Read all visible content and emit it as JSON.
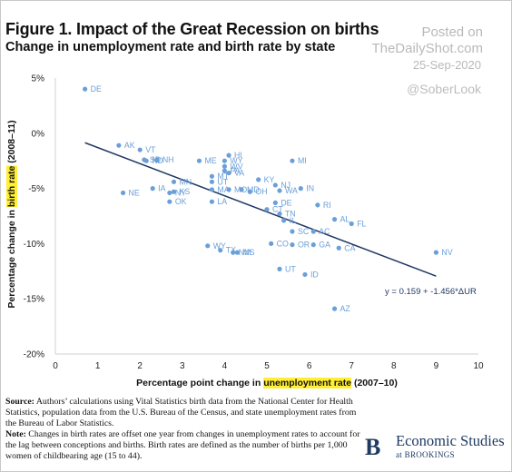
{
  "header": {
    "title": "Figure 1. Impact of the Great Recession on births",
    "subtitle": "Change in unemployment rate and birth rate by state",
    "posted_on": "Posted on",
    "site": "TheDailyShot.com",
    "date": "25-Sep-2020",
    "handle": "@SoberLook"
  },
  "chart_data": {
    "type": "scatter",
    "xlabel_prefix": "Percentage point change in ",
    "xlabel_highlight": "unemployment rate",
    "xlabel_suffix": " (2007–10)",
    "ylabel_prefix": "Percentage change in ",
    "ylabel_highlight": "birth rate",
    "ylabel_suffix": " (2008–11)",
    "xlim": [
      0,
      10
    ],
    "ylim": [
      -20,
      5
    ],
    "x_ticks": [
      0,
      1,
      2,
      3,
      4,
      5,
      6,
      7,
      8,
      9,
      10
    ],
    "y_ticks": [
      5,
      0,
      -5,
      -10,
      -15,
      -20
    ],
    "y_tick_labels": [
      "5%",
      "0%",
      "-5%",
      "-10%",
      "-15%",
      "-20%"
    ],
    "grid": false,
    "point_color": "#6a9fd8",
    "line_color": "#1f3864",
    "trendline": {
      "intercept": 0.159,
      "slope": -1.456,
      "x_range": [
        0.7,
        9.0
      ]
    },
    "equation": "y = 0.159 + -1.456*ΔUR",
    "points": [
      {
        "label": "DE",
        "x": 0.7,
        "y": 4.0
      },
      {
        "label": "AK",
        "x": 1.5,
        "y": -1.1
      },
      {
        "label": "VT",
        "x": 2.0,
        "y": -1.5
      },
      {
        "label": "SD",
        "x": 2.1,
        "y": -2.4
      },
      {
        "label": "NH",
        "x": 2.4,
        "y": -2.4
      },
      {
        "label": "ND",
        "x": 2.15,
        "y": -2.5
      },
      {
        "label": "NE",
        "x": 1.6,
        "y": -5.4
      },
      {
        "label": "IA",
        "x": 2.3,
        "y": -5.0
      },
      {
        "label": "MN",
        "x": 2.8,
        "y": -4.4
      },
      {
        "label": "KS",
        "x": 2.8,
        "y": -5.3
      },
      {
        "label": "NY",
        "x": 2.7,
        "y": -5.4
      },
      {
        "label": "OK",
        "x": 2.7,
        "y": -6.2
      },
      {
        "label": "ME",
        "x": 3.4,
        "y": -2.5
      },
      {
        "label": "HI",
        "x": 4.1,
        "y": -2.0
      },
      {
        "label": "WY",
        "x": 4.0,
        "y": -2.5
      },
      {
        "label": "WV",
        "x": 4.0,
        "y": -3.0
      },
      {
        "label": "PA",
        "x": 4.0,
        "y": -3.4
      },
      {
        "label": "VA",
        "x": 4.1,
        "y": -3.6
      },
      {
        "label": "MT",
        "x": 3.7,
        "y": -3.9
      },
      {
        "label": "UT",
        "x": 3.7,
        "y": -4.4
      },
      {
        "label": "MA",
        "x": 3.7,
        "y": -5.1
      },
      {
        "label": "MO",
        "x": 4.1,
        "y": -5.1
      },
      {
        "label": "MD",
        "x": 4.4,
        "y": -5.1
      },
      {
        "label": "OH",
        "x": 4.6,
        "y": -5.3
      },
      {
        "label": "LA",
        "x": 3.7,
        "y": -6.2
      },
      {
        "label": "KY",
        "x": 4.8,
        "y": -4.2
      },
      {
        "label": "NJ",
        "x": 5.2,
        "y": -4.7
      },
      {
        "label": "WA",
        "x": 5.3,
        "y": -5.2
      },
      {
        "label": "IN",
        "x": 5.8,
        "y": -5.0
      },
      {
        "label": "MI",
        "x": 5.6,
        "y": -2.5
      },
      {
        "label": "DE",
        "x": 5.2,
        "y": -6.3
      },
      {
        "label": "CT",
        "x": 5.0,
        "y": -6.9
      },
      {
        "label": "TN",
        "x": 5.3,
        "y": -7.3
      },
      {
        "label": "RI",
        "x": 6.2,
        "y": -6.5
      },
      {
        "label": "IL",
        "x": 5.4,
        "y": -7.9
      },
      {
        "label": "AL",
        "x": 6.6,
        "y": -7.8
      },
      {
        "label": "FL",
        "x": 7.0,
        "y": -8.2
      },
      {
        "label": "SC",
        "x": 5.6,
        "y": -8.9
      },
      {
        "label": "AC",
        "x": 6.1,
        "y": -8.9
      },
      {
        "label": "CO",
        "x": 5.1,
        "y": -10.0
      },
      {
        "label": "OR",
        "x": 5.6,
        "y": -10.1
      },
      {
        "label": "GA",
        "x": 6.1,
        "y": -10.1
      },
      {
        "label": "CA",
        "x": 6.7,
        "y": -10.4
      },
      {
        "label": "WY",
        "x": 3.6,
        "y": -10.2
      },
      {
        "label": "TX",
        "x": 3.9,
        "y": -10.6
      },
      {
        "label": "NM",
        "x": 4.2,
        "y": -10.8
      },
      {
        "label": "MS",
        "x": 4.3,
        "y": -10.8
      },
      {
        "label": "NV",
        "x": 9.0,
        "y": -10.8
      },
      {
        "label": "UT",
        "x": 5.3,
        "y": -12.3
      },
      {
        "label": "ID",
        "x": 5.9,
        "y": -12.8
      },
      {
        "label": "AZ",
        "x": 6.6,
        "y": -15.9
      }
    ]
  },
  "footer": {
    "source_label": "Source:",
    "source_text": " Authors’ calculations using Vital Statistics birth data from the National Center for Health Statistics, population data from the U.S. Bureau of the Census, and state unemployment rates from the Bureau of Labor Statistics.",
    "note_label": "Note:",
    "note_text": " Changes in birth rates are offset one year from changes in unemployment rates to account for the lag between conceptions and births. Birth rates are defined as the number of births per 1,000 women of childbearing age (15 to 44).",
    "brand_letter": "B",
    "brand_name": "Economic Studies",
    "brand_sub": "at BROOKINGS"
  }
}
